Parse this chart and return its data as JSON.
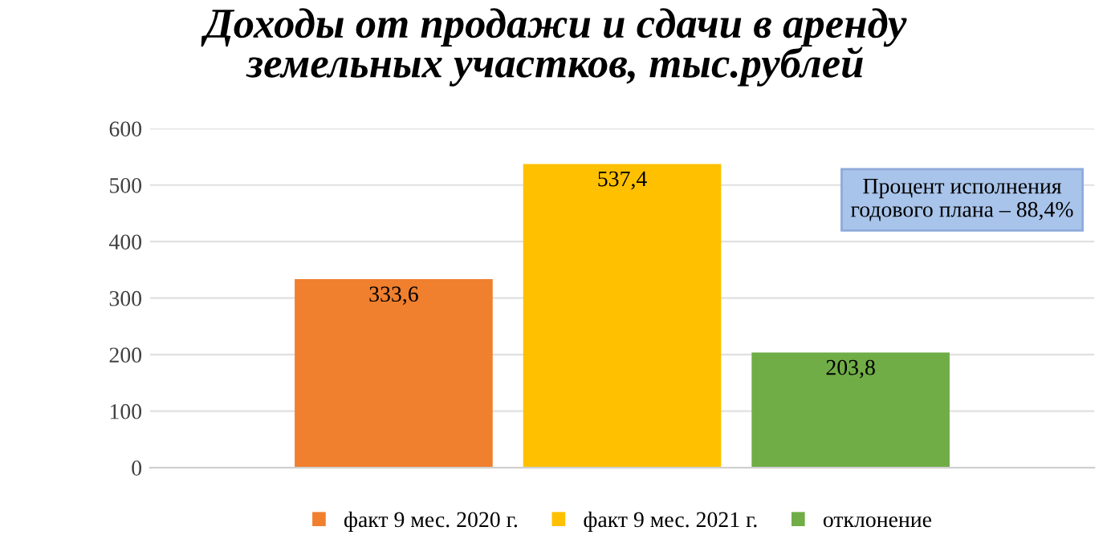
{
  "chart_data": {
    "type": "bar",
    "title": "Доходы от продажи и сдачи в аренду\nземельных участков, тыс.рублей",
    "categories": [
      null
    ],
    "series": [
      {
        "name": "факт 9 мес. 2020 г.",
        "color": "#f07f2e",
        "values": [
          333.6
        ],
        "value_labels": [
          "333,6"
        ]
      },
      {
        "name": "факт 9 мес. 2021 г.",
        "color": "#ffc000",
        "values": [
          537.4
        ],
        "value_labels": [
          "537,4"
        ]
      },
      {
        "name": "отклонение",
        "color": "#70ad47",
        "values": [
          203.8
        ],
        "value_labels": [
          "203,8"
        ]
      }
    ],
    "ylim": [
      0,
      600
    ],
    "yticks": [
      0,
      100,
      200,
      300,
      400,
      500,
      600
    ],
    "grid": "y",
    "legend": "bottom",
    "annotations": [
      "Процент исполнения\nгодового плана – 88,4%"
    ]
  }
}
